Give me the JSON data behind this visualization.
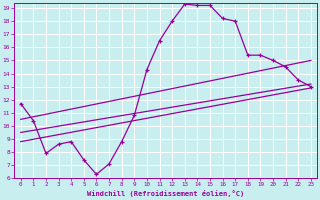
{
  "xlabel": "Windchill (Refroidissement éolien,°C)",
  "bg_color": "#c8eef0",
  "line_color": "#990099",
  "xlim": [
    -0.5,
    23.5
  ],
  "ylim": [
    6,
    19.4
  ],
  "xticks": [
    0,
    1,
    2,
    3,
    4,
    5,
    6,
    7,
    8,
    9,
    10,
    11,
    12,
    13,
    14,
    15,
    16,
    17,
    18,
    19,
    20,
    21,
    22,
    23
  ],
  "yticks": [
    6,
    7,
    8,
    9,
    10,
    11,
    12,
    13,
    14,
    15,
    16,
    17,
    18,
    19
  ],
  "curve1_x": [
    0,
    1,
    2,
    3,
    4,
    5,
    6,
    7,
    8,
    9,
    10,
    11,
    12,
    13,
    14,
    15,
    16,
    17,
    18,
    19,
    20,
    21,
    22,
    23
  ],
  "curve1_y": [
    11.7,
    10.4,
    7.9,
    8.6,
    8.8,
    7.4,
    6.3,
    7.1,
    8.8,
    10.8,
    14.3,
    16.5,
    18.0,
    19.3,
    19.2,
    19.2,
    18.2,
    18.0,
    15.4,
    15.4,
    15.0,
    14.5,
    13.5,
    13.0
  ],
  "line1_x": [
    0,
    23
  ],
  "line1_y": [
    10.5,
    15.0
  ],
  "line2_x": [
    0,
    23
  ],
  "line2_y": [
    9.5,
    13.2
  ],
  "line3_x": [
    0,
    23
  ],
  "line3_y": [
    8.8,
    12.9
  ]
}
